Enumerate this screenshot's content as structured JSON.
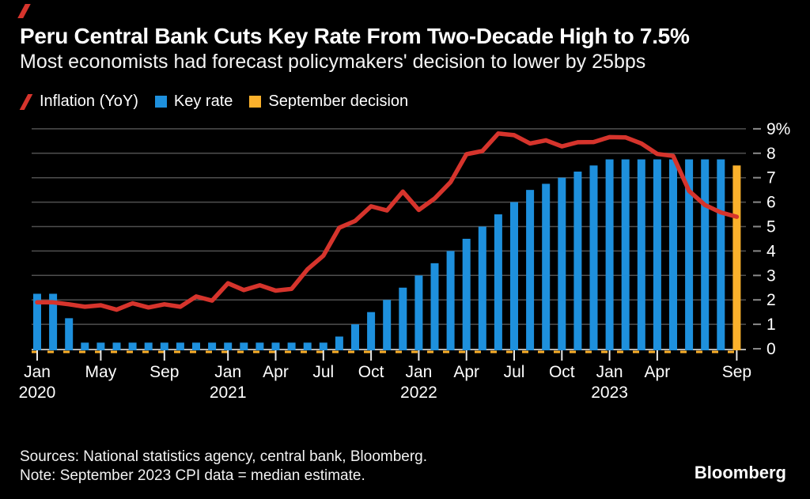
{
  "header": {
    "title": "Peru Central Bank Cuts Key Rate From Two-Decade High to 7.5%",
    "subtitle": "Most economists had forecast policymakers' decision to lower by 25bps"
  },
  "legend": {
    "items": [
      {
        "label": "Inflation (YoY)",
        "marker": "slash",
        "color": "#d6342c"
      },
      {
        "label": "Key rate",
        "marker": "square",
        "color": "#1e90dd"
      },
      {
        "label": "September decision",
        "marker": "square",
        "color": "#fbb12c"
      }
    ]
  },
  "footer": {
    "sources": "Sources: National statistics agency, central bank, Bloomberg.",
    "note": "Note: September 2023 CPI data = median estimate.",
    "logo_text": "Bloomberg"
  },
  "colors": {
    "background": "#000000",
    "inflation_line": "#d6342c",
    "key_rate_bar": "#1e90dd",
    "september_bar": "#fbb12c",
    "gridline": "#4f4f4f",
    "axis_line": "#b3b3b3",
    "axis_dash_tick": "#8a8a8a",
    "x_tick": "#e8e8e8",
    "label_text": "#ffffff",
    "zero_dashed_line": "#fbb12c"
  },
  "chart_data": {
    "type": "bar+line",
    "frequency": "monthly",
    "x_start": "2020-01",
    "x_end": "2023-09",
    "y_axis": {
      "min": 0,
      "max": 9,
      "side": "right",
      "tick_labels": [
        "0",
        "1",
        "2",
        "3",
        "4",
        "5",
        "6",
        "7",
        "8",
        "9%"
      ]
    },
    "x_ticks": [
      {
        "month_index": 0,
        "label": "Jan",
        "year_label": "2020"
      },
      {
        "month_index": 4,
        "label": "May"
      },
      {
        "month_index": 8,
        "label": "Sep"
      },
      {
        "month_index": 12,
        "label": "Jan",
        "year_label": "2021"
      },
      {
        "month_index": 15,
        "label": "Apr"
      },
      {
        "month_index": 18,
        "label": "Jul"
      },
      {
        "month_index": 21,
        "label": "Oct"
      },
      {
        "month_index": 24,
        "label": "Jan",
        "year_label": "2022"
      },
      {
        "month_index": 27,
        "label": "Apr"
      },
      {
        "month_index": 30,
        "label": "Jul"
      },
      {
        "month_index": 33,
        "label": "Oct"
      },
      {
        "month_index": 36,
        "label": "Jan",
        "year_label": "2023"
      },
      {
        "month_index": 39,
        "label": "Apr"
      },
      {
        "month_index": 44,
        "label": "Sep"
      }
    ],
    "series": [
      {
        "name": "Inflation (YoY)",
        "type": "line",
        "color": "#d6342c",
        "values": [
          1.9,
          1.9,
          1.82,
          1.72,
          1.78,
          1.6,
          1.86,
          1.69,
          1.82,
          1.72,
          2.14,
          1.97,
          2.68,
          2.4,
          2.6,
          2.38,
          2.45,
          3.25,
          3.81,
          4.95,
          5.23,
          5.83,
          5.66,
          6.43,
          5.68,
          6.15,
          6.82,
          7.96,
          8.09,
          8.81,
          8.74,
          8.4,
          8.53,
          8.28,
          8.45,
          8.46,
          8.66,
          8.65,
          8.4,
          7.97,
          7.89,
          6.46,
          5.88,
          5.58,
          5.4
        ]
      },
      {
        "name": "Key rate",
        "type": "bar",
        "color": "#1e90dd",
        "values": [
          2.25,
          2.25,
          1.25,
          0.25,
          0.25,
          0.25,
          0.25,
          0.25,
          0.25,
          0.25,
          0.25,
          0.25,
          0.25,
          0.25,
          0.25,
          0.25,
          0.25,
          0.25,
          0.25,
          0.5,
          1.0,
          1.5,
          2.0,
          2.5,
          3.0,
          3.5,
          4.0,
          4.5,
          5.0,
          5.5,
          6.0,
          6.5,
          6.75,
          7.0,
          7.25,
          7.5,
          7.75,
          7.75,
          7.75,
          7.75,
          7.75,
          7.75,
          7.75,
          7.75,
          null
        ]
      },
      {
        "name": "September decision",
        "type": "bar",
        "color": "#fbb12c",
        "values": [
          null,
          null,
          null,
          null,
          null,
          null,
          null,
          null,
          null,
          null,
          null,
          null,
          null,
          null,
          null,
          null,
          null,
          null,
          null,
          null,
          null,
          null,
          null,
          null,
          null,
          null,
          null,
          null,
          null,
          null,
          null,
          null,
          null,
          null,
          null,
          null,
          null,
          null,
          null,
          null,
          null,
          null,
          null,
          null,
          7.5
        ]
      }
    ]
  }
}
